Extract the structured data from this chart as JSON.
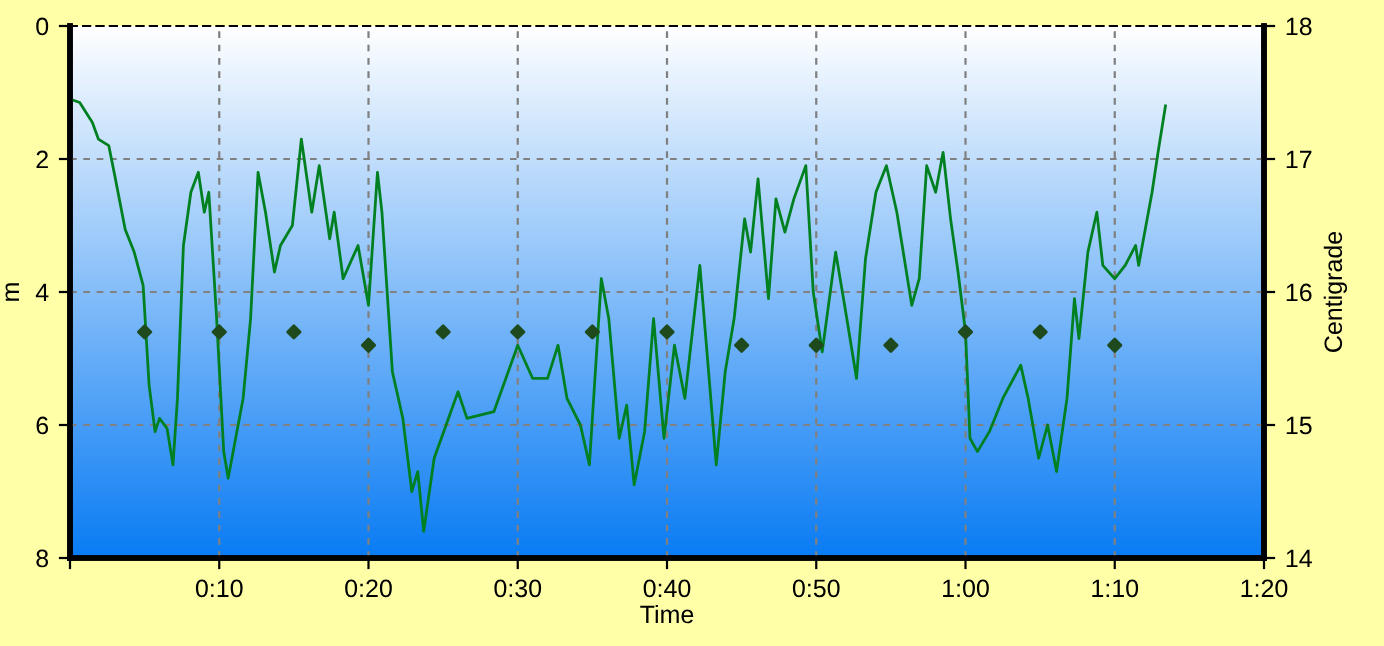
{
  "chart_data": {
    "type": "line",
    "xlabel": "Time",
    "ylabel": "m",
    "y2label": "Centigrade",
    "xlim": [
      0,
      80
    ],
    "xticks": [
      {
        "value": 0,
        "label": null
      },
      {
        "value": 10,
        "label": "0:10"
      },
      {
        "value": 20,
        "label": "0:20"
      },
      {
        "value": 30,
        "label": "0:30"
      },
      {
        "value": 40,
        "label": "0:40"
      },
      {
        "value": 50,
        "label": "0:50"
      },
      {
        "value": 60,
        "label": "1:00"
      },
      {
        "value": 70,
        "label": "1:10"
      },
      {
        "value": 80,
        "label": "1:20"
      }
    ],
    "ylim": [
      8,
      0
    ],
    "yticks": [
      0,
      2,
      4,
      6,
      8
    ],
    "y2lim": [
      14,
      18
    ],
    "y2ticks": [
      14,
      15,
      16,
      17,
      18
    ],
    "grid": true,
    "legend": false,
    "series": [
      {
        "color": "#008020",
        "line_style": "solid",
        "marker": "none",
        "x": [
          0,
          0.65,
          1.5,
          1.9,
          2.6,
          3.0,
          3.7,
          4.3,
          4.9,
          5.3,
          5.7,
          6.0,
          6.5,
          6.9,
          7.2,
          7.6,
          8.1,
          8.6,
          9.0,
          9.3,
          9.8,
          10.3,
          10.6,
          11.1,
          11.6,
          12.1,
          12.6,
          13.1,
          13.7,
          14.1,
          14.9,
          15.5,
          16.2,
          16.7,
          17.4,
          17.7,
          18.3,
          19.3,
          20.0,
          20.6,
          20.9,
          21.6,
          22.3,
          22.9,
          23.3,
          23.7,
          24.4,
          25.2,
          26.0,
          26.6,
          28.4,
          30.0,
          31.0,
          32.0,
          32.7,
          33.3,
          34.2,
          34.8,
          35.6,
          36.1,
          36.8,
          37.3,
          37.8,
          38.5,
          39.1,
          39.8,
          40.5,
          41.2,
          42.2,
          43.3,
          43.9,
          44.5,
          45.2,
          45.6,
          46.1,
          46.8,
          47.3,
          47.9,
          48.5,
          49.3,
          49.8,
          50.4,
          51.3,
          51.9,
          52.7,
          53.3,
          54.0,
          54.7,
          55.4,
          56.4,
          56.9,
          57.4,
          58.0,
          58.5,
          59.0,
          59.5,
          60.0,
          60.3,
          60.8,
          61.6,
          62.5,
          63.7,
          64.2,
          64.9,
          65.5,
          66.1,
          66.8,
          67.3,
          67.6,
          68.2,
          68.8,
          69.2,
          70.0,
          70.7,
          71.4,
          71.6,
          72.5,
          72.9,
          73.4
        ],
        "values": [
          1.1,
          1.15,
          1.45,
          1.7,
          1.8,
          2.25,
          3.06,
          3.4,
          3.9,
          5.4,
          6.1,
          5.9,
          6.05,
          6.6,
          5.6,
          3.3,
          2.5,
          2.2,
          2.8,
          2.5,
          4.3,
          6.4,
          6.8,
          6.2,
          5.6,
          4.4,
          2.2,
          2.8,
          3.7,
          3.3,
          3.0,
          1.7,
          2.8,
          2.1,
          3.2,
          2.8,
          3.8,
          3.3,
          4.2,
          2.2,
          2.8,
          5.2,
          5.9,
          7.0,
          6.7,
          7.6,
          6.5,
          6.0,
          5.5,
          5.9,
          5.8,
          4.8,
          5.3,
          5.3,
          4.8,
          5.6,
          6.0,
          6.6,
          3.8,
          4.4,
          6.2,
          5.7,
          6.9,
          6.1,
          4.4,
          6.2,
          4.8,
          5.6,
          3.6,
          6.6,
          5.2,
          4.4,
          2.9,
          3.4,
          2.3,
          4.1,
          2.6,
          3.1,
          2.6,
          2.1,
          4.0,
          4.9,
          3.4,
          4.2,
          5.3,
          3.5,
          2.5,
          2.1,
          2.8,
          4.2,
          3.8,
          2.1,
          2.5,
          1.9,
          2.9,
          3.7,
          4.6,
          6.2,
          6.4,
          6.1,
          5.6,
          5.1,
          5.6,
          6.5,
          6.0,
          6.7,
          5.6,
          4.1,
          4.7,
          3.4,
          2.8,
          3.6,
          3.8,
          3.6,
          3.3,
          3.6,
          2.5,
          1.9,
          1.2
        ]
      },
      {
        "type": "scatter",
        "axis": "y2",
        "color": "#1e4a1e",
        "marker": "diamond",
        "x": [
          5,
          10,
          15,
          20,
          25,
          30,
          35,
          40,
          45,
          50,
          55,
          60,
          65,
          70
        ],
        "values": [
          15.7,
          15.7,
          15.7,
          15.6,
          15.7,
          15.7,
          15.7,
          15.7,
          15.6,
          15.6,
          15.6,
          15.7,
          15.7,
          15.6
        ]
      }
    ]
  }
}
